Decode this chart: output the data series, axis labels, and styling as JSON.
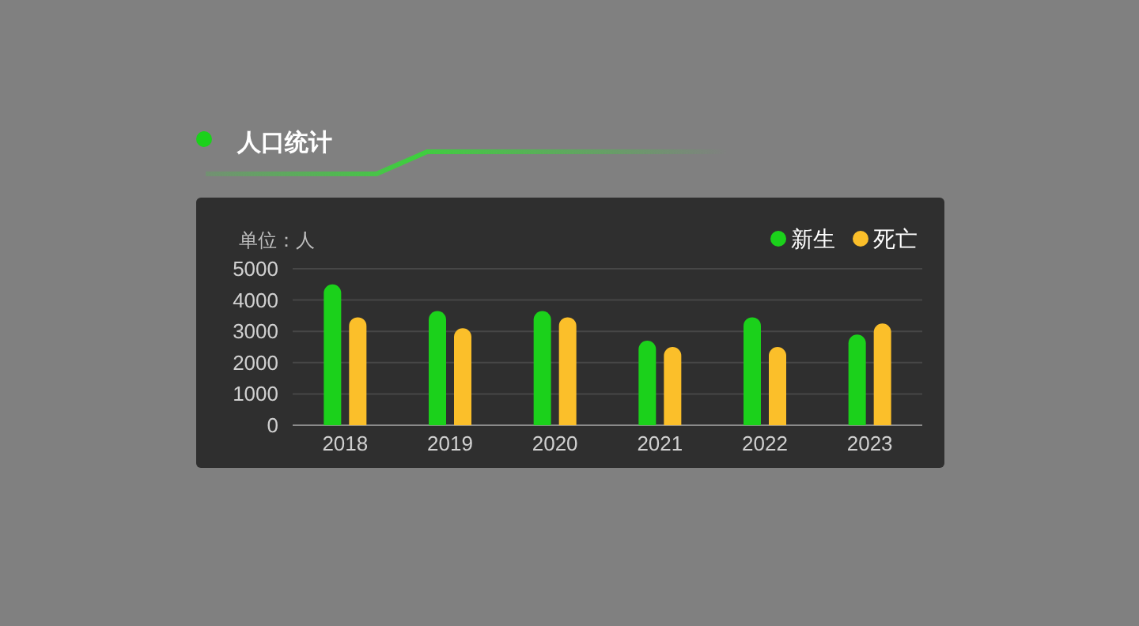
{
  "chart_data": {
    "type": "bar",
    "title": "人口统计",
    "ylabel": "单位：人",
    "categories": [
      "2018",
      "2019",
      "2020",
      "2021",
      "2022",
      "2023"
    ],
    "series": [
      {
        "name": "新生",
        "color": "#1bd11b",
        "values": [
          4500,
          3650,
          3650,
          2700,
          3450,
          2900
        ]
      },
      {
        "name": "死亡",
        "color": "#fbbf2a",
        "values": [
          3450,
          3100,
          3450,
          2500,
          2500,
          3250
        ]
      }
    ],
    "ylim": [
      0,
      5000
    ],
    "yticks": [
      0,
      1000,
      2000,
      3000,
      4000,
      5000
    ],
    "grid": "y",
    "legend": "top right"
  }
}
